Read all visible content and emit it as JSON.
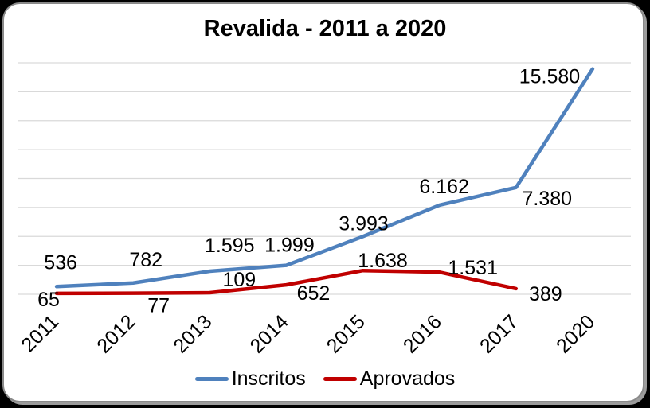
{
  "chart_data": {
    "type": "line",
    "title": "Revalida - 2011 a 2020",
    "categories": [
      "2011",
      "2012",
      "2013",
      "2014",
      "2015",
      "2016",
      "2017",
      "2020"
    ],
    "series": [
      {
        "name": "Inscritos",
        "color": "#4F81BD",
        "values": [
          536,
          782,
          1595,
          1999,
          3993,
          6162,
          7380,
          15580
        ],
        "labels": [
          "536",
          "782",
          "1.595",
          "1.999",
          "3.993",
          "6.162",
          "7.380",
          "15.580"
        ]
      },
      {
        "name": "Aprovados",
        "color": "#C00000",
        "values": [
          65,
          77,
          109,
          652,
          1638,
          1531,
          389
        ],
        "labels": [
          "65",
          "77",
          "109",
          "652",
          "1.638",
          "1.531",
          "389"
        ]
      }
    ],
    "xlabel": "",
    "ylabel": "",
    "ylim": [
      0,
      16000
    ],
    "gridline_step": 2000,
    "grid": true,
    "gridline_color": "#D9D9D9",
    "background_color": "#FFFFFF",
    "legend_position": "bottom"
  }
}
